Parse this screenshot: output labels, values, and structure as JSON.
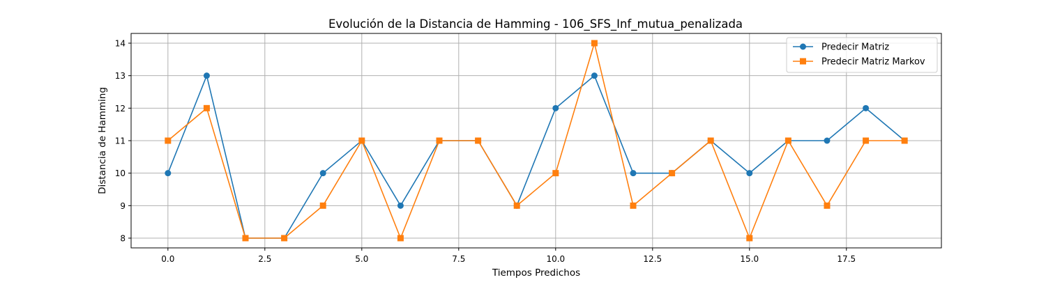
{
  "chart_data": {
    "type": "line",
    "title": "Evolución de la Distancia de Hamming - 106_SFS_Inf_mutua_penalizada",
    "xlabel": "Tiempos Predichos",
    "ylabel": "Distancia de Hamming",
    "x": [
      0,
      1,
      2,
      3,
      4,
      5,
      6,
      7,
      8,
      9,
      10,
      11,
      12,
      13,
      14,
      15,
      16,
      17,
      18,
      19
    ],
    "xlim": [
      -0.95,
      19.95
    ],
    "ylim": [
      7.7,
      14.3
    ],
    "xticks": [
      0.0,
      2.5,
      5.0,
      7.5,
      10.0,
      12.5,
      15.0,
      17.5
    ],
    "xtick_labels": [
      "0.0",
      "2.5",
      "5.0",
      "7.5",
      "10.0",
      "12.5",
      "15.0",
      "17.5"
    ],
    "yticks": [
      8,
      9,
      10,
      11,
      12,
      13,
      14
    ],
    "ytick_labels": [
      "8",
      "9",
      "10",
      "11",
      "12",
      "13",
      "14"
    ],
    "grid": true,
    "legend_position": "top-right",
    "series": [
      {
        "name": "Predecir Matriz",
        "color": "#1f77b4",
        "marker": "circle",
        "values": [
          10,
          13,
          8,
          8,
          10,
          11,
          9,
          11,
          11,
          9,
          12,
          13,
          10,
          10,
          11,
          10,
          11,
          11,
          12,
          11
        ]
      },
      {
        "name": "Predecir Matriz Markov",
        "color": "#ff7f0e",
        "marker": "square",
        "values": [
          11,
          12,
          8,
          8,
          9,
          11,
          8,
          11,
          11,
          9,
          10,
          14,
          9,
          10,
          11,
          8,
          11,
          9,
          11,
          11
        ]
      }
    ]
  }
}
